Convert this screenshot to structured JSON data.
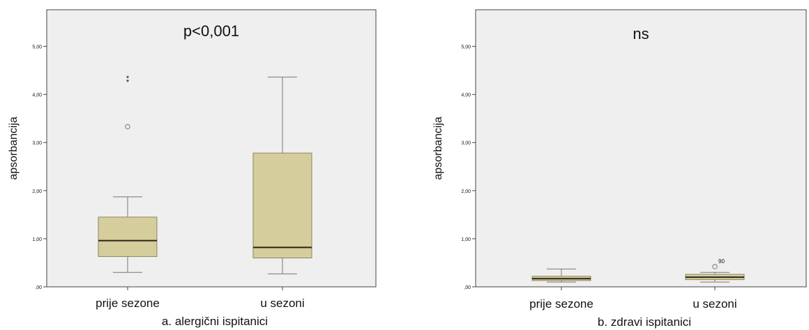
{
  "chart_data": [
    {
      "type": "box",
      "annotation": "p<0,001",
      "xlabel": "a. alergični ispitanici",
      "ylabel": "apsorbancija",
      "ylim": [
        0,
        5.5
      ],
      "yticks": [
        {
          "value": 0,
          "label": ",00"
        },
        {
          "value": 1,
          "label": "1,00"
        },
        {
          "value": 2,
          "label": "2,00"
        },
        {
          "value": 3,
          "label": "3,00"
        },
        {
          "value": 4,
          "label": "4,00"
        },
        {
          "value": 5,
          "label": "5,00"
        }
      ],
      "categories": [
        "prije sezone",
        "u sezoni"
      ],
      "boxes": [
        {
          "min": 0.3,
          "q1": 0.63,
          "median": 0.96,
          "q3": 1.45,
          "max": 1.87,
          "outliers": [
            3.33
          ],
          "extremes": [
            4.28,
            4.36
          ]
        },
        {
          "min": 0.27,
          "q1": 0.6,
          "median": 0.82,
          "q3": 2.78,
          "max": 4.36,
          "outliers": [],
          "extremes": []
        }
      ],
      "grid": false
    },
    {
      "type": "box",
      "annotation": "ns",
      "xlabel": "b. zdravi ispitanici",
      "ylabel": "apsorbancija",
      "ylim": [
        0,
        5.5
      ],
      "yticks": [
        {
          "value": 0,
          "label": ",00"
        },
        {
          "value": 1,
          "label": "1,00"
        },
        {
          "value": 2,
          "label": "2,00"
        },
        {
          "value": 3,
          "label": "3,00"
        },
        {
          "value": 4,
          "label": "4,00"
        },
        {
          "value": 5,
          "label": "5,00"
        }
      ],
      "categories": [
        "prije sezone",
        "u sezoni"
      ],
      "boxes": [
        {
          "min": 0.1,
          "q1": 0.13,
          "median": 0.17,
          "q3": 0.22,
          "max": 0.37,
          "outliers": [],
          "extremes": []
        },
        {
          "min": 0.1,
          "q1": 0.15,
          "median": 0.2,
          "q3": 0.26,
          "max": 0.3,
          "outliers": [
            0.42
          ],
          "extremes": [],
          "outlier_labels": [
            "90"
          ]
        }
      ],
      "grid": false
    }
  ],
  "colors": {
    "plot_bg": "#efefef",
    "box_fill": "#d6cd9c",
    "box_stroke": "#8a8566",
    "median": "#2a2418",
    "whisker": "#777777",
    "axis": "#444444",
    "outlier": "#8a8a8a"
  }
}
